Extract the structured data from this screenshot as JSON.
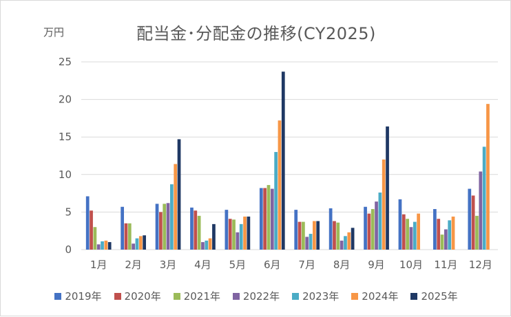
{
  "chart_data": {
    "type": "bar",
    "title": "配当金･分配金の推移(CY2025)",
    "unit_label": "万円",
    "ylim": [
      0,
      25
    ],
    "yticks": [
      "0",
      "5",
      "10",
      "15",
      "20",
      "25"
    ],
    "grid": true,
    "legend_position": "bottom",
    "categories": [
      "1月",
      "2月",
      "3月",
      "4月",
      "5月",
      "6月",
      "7月",
      "8月",
      "9月",
      "10月",
      "11月",
      "12月"
    ],
    "series": [
      {
        "name": "2019年",
        "color": "#4472C4",
        "values": [
          7.1,
          5.7,
          6.1,
          5.6,
          5.3,
          8.2,
          5.3,
          5.5,
          5.7,
          6.7,
          5.4,
          8.1
        ]
      },
      {
        "name": "2020年",
        "color": "#C0504D",
        "values": [
          5.2,
          3.5,
          5.0,
          5.2,
          4.1,
          8.2,
          3.7,
          3.8,
          4.8,
          4.7,
          4.1,
          7.2
        ]
      },
      {
        "name": "2021年",
        "color": "#9BBB59",
        "values": [
          3.0,
          3.5,
          6.1,
          4.5,
          4.0,
          8.6,
          3.7,
          3.6,
          5.4,
          4.1,
          2.0,
          4.5
        ]
      },
      {
        "name": "2022年",
        "color": "#8064A2",
        "values": [
          0.7,
          0.8,
          6.2,
          1.0,
          2.3,
          8.1,
          1.7,
          1.2,
          6.4,
          3.0,
          2.7,
          10.4
        ]
      },
      {
        "name": "2023年",
        "color": "#4BACC6",
        "values": [
          1.1,
          1.5,
          8.7,
          1.2,
          3.4,
          13.0,
          2.1,
          1.8,
          7.6,
          3.7,
          3.9,
          13.7
        ]
      },
      {
        "name": "2024年",
        "color": "#F79646",
        "values": [
          1.2,
          1.8,
          11.4,
          1.5,
          4.4,
          17.2,
          3.8,
          2.3,
          12.0,
          4.8,
          4.4,
          19.4
        ]
      },
      {
        "name": "2025年",
        "color": "#1F3864",
        "values": [
          1.0,
          1.9,
          14.7,
          3.4,
          4.4,
          23.7,
          3.8,
          2.9,
          16.4,
          null,
          null,
          null
        ]
      }
    ]
  }
}
